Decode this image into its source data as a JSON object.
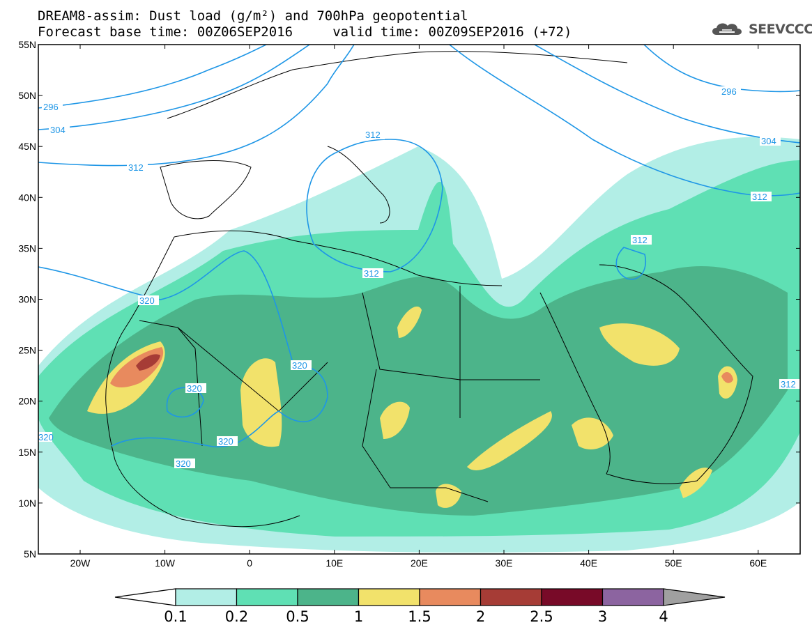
{
  "header": {
    "title_line1": "DREAM8-assim: Dust load (g/m²) and 700hPa geopotential",
    "title_line2": "Forecast base time: 00Z06SEP2016     valid time: 00Z09SEP2016 (+72)"
  },
  "logo": {
    "text": "SEEVCCC",
    "icon": "cloud-icon"
  },
  "axes": {
    "lat_labels": [
      "55N",
      "50N",
      "45N",
      "40N",
      "35N",
      "30N",
      "25N",
      "20N",
      "15N",
      "10N",
      "5N"
    ],
    "lon_labels": [
      "20W",
      "10W",
      "0",
      "10E",
      "20E",
      "30E",
      "40E",
      "50E",
      "60E"
    ]
  },
  "contours": {
    "labels": [
      "296",
      "304",
      "312",
      "312",
      "312",
      "312",
      "320",
      "320",
      "320",
      "320",
      "320",
      "320",
      "296",
      "304",
      "312",
      "312",
      "312"
    ]
  },
  "colorbar": {
    "labels": [
      "0.1",
      "0.2",
      "0.5",
      "1",
      "1.5",
      "2",
      "2.5",
      "3",
      "4"
    ],
    "colors": [
      "#b2eee6",
      "#5fe0b4",
      "#4cb48a",
      "#f2e26b",
      "#e88a5e",
      "#a63c36",
      "#780a28",
      "#8c64a0",
      "#a0a0a0"
    ]
  },
  "colors": {
    "contour": "#1e96e6",
    "border": "#000000"
  }
}
